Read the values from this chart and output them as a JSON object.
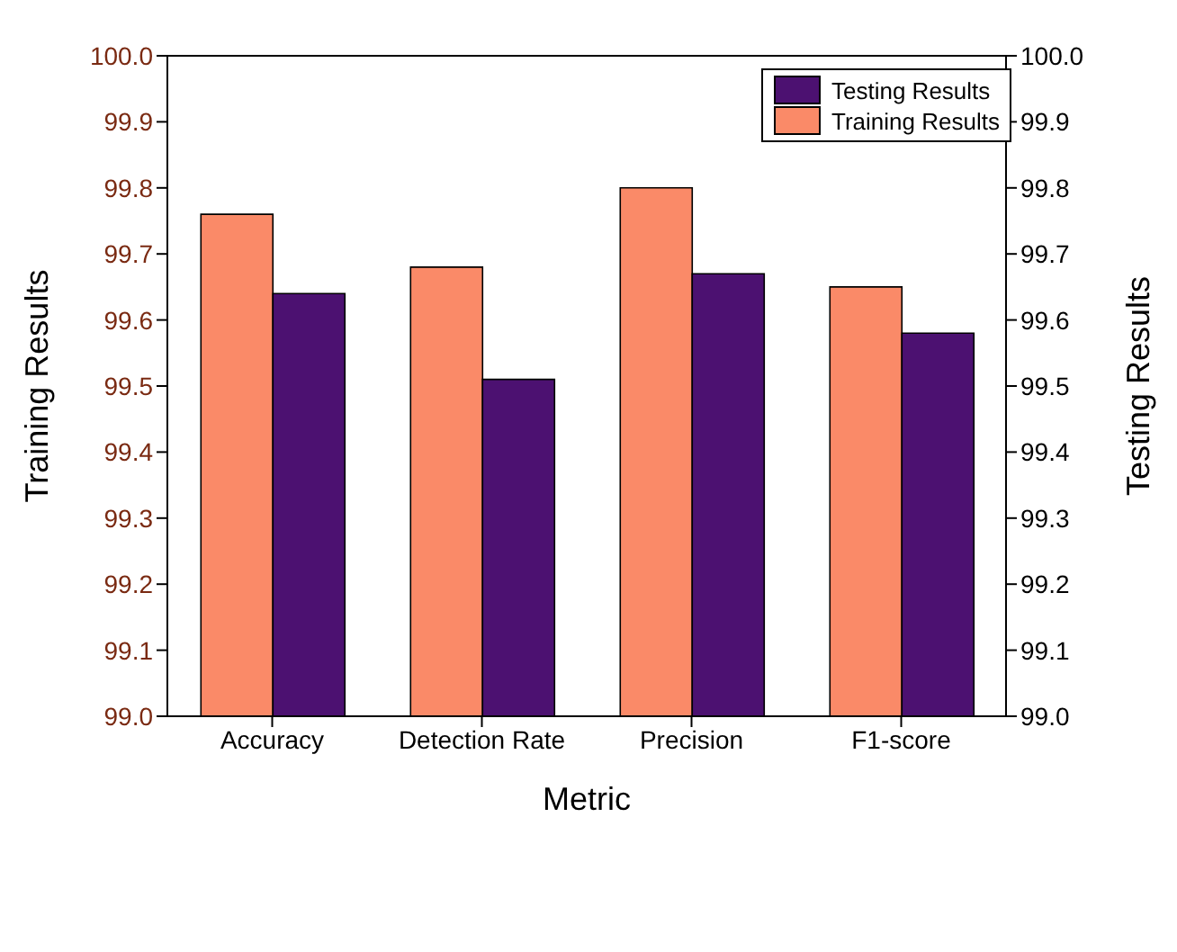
{
  "chart_data": {
    "type": "bar",
    "xlabel": "Metric",
    "ylabel": "Training Results",
    "y2label": "Testing Results",
    "categories": [
      "Accuracy",
      "Detection Rate",
      "Precision",
      "F1-score"
    ],
    "series": [
      {
        "name": "Training Results",
        "color": "#fa8a68",
        "values": [
          99.76,
          99.68,
          99.8,
          99.65
        ]
      },
      {
        "name": "Testing Results",
        "color": "#4c1171",
        "values": [
          99.64,
          99.51,
          99.67,
          99.58
        ],
        "axis": "y2"
      }
    ],
    "ylim": [
      99.0,
      100.0
    ],
    "yticks": [
      {
        "value": 99,
        "label": "99.0"
      },
      99.1,
      99.2,
      99.3,
      99.4,
      99.5,
      99.6,
      99.7,
      99.8,
      99.9,
      {
        "value": 100,
        "label": "100.0"
      }
    ],
    "y2lim": [
      99.0,
      100.0
    ],
    "y2ticks": [
      {
        "value": 99,
        "label": "99.0"
      },
      99.1,
      99.2,
      99.3,
      99.4,
      99.5,
      99.6,
      99.7,
      99.8,
      99.9,
      {
        "value": 100,
        "label": "100.0"
      }
    ],
    "grid": false,
    "legend": "top right"
  }
}
